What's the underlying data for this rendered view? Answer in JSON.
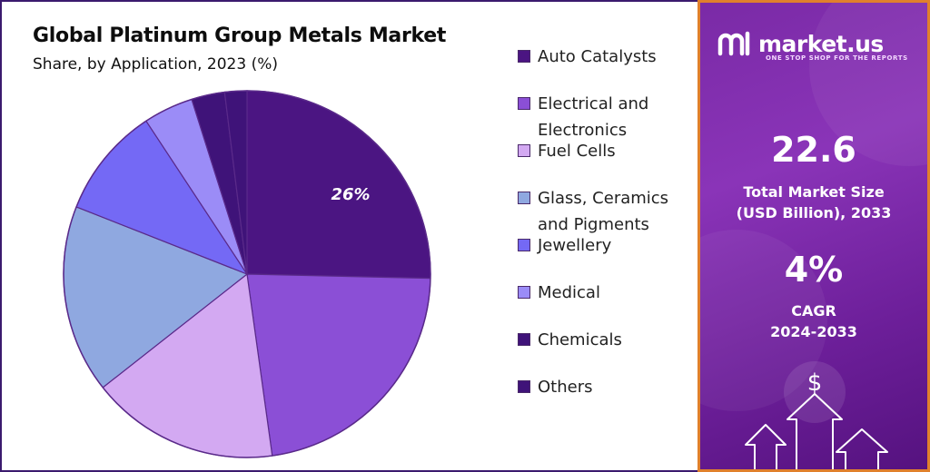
{
  "chart_data": {
    "type": "pie",
    "title": "Global Platinum Group Metals Market",
    "subtitle": "Share, by Application, 2023 (%)",
    "data_labels": [
      "26%"
    ],
    "categories": [
      "Auto Catalysts",
      "Electrical and Electronics",
      "Fuel Cells",
      "Glass, Ceramics and Pigments",
      "Jewellery",
      "Medical",
      "Chemicals",
      "Others"
    ],
    "values": [
      26,
      23,
      17,
      17,
      10,
      4.5,
      3,
      2
    ],
    "colors": [
      "#4b1582",
      "#8b4fd6",
      "#d3a9f2",
      "#8fa8e0",
      "#7469f5",
      "#9b8cf7",
      "#3f1379",
      "#3f1379"
    ],
    "legend_position": "right"
  },
  "sidebar": {
    "brand_name": "market.us",
    "brand_tagline": "ONE STOP SHOP FOR THE REPORTS",
    "market_size_value": "22.6",
    "market_size_label": "Total Market Size (USD Billion), 2033",
    "cagr_value": "4%",
    "cagr_label": "CAGR",
    "cagr_period": "2024-2033",
    "dollar_icon": "$"
  }
}
